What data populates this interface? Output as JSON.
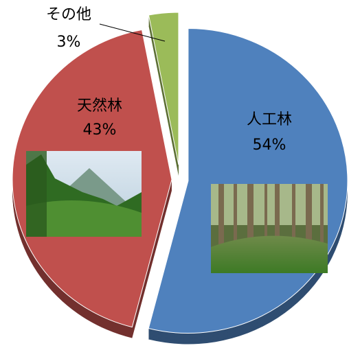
{
  "chart_data": {
    "type": "pie",
    "categories": [
      "人工林",
      "天然林",
      "その他"
    ],
    "values": [
      54,
      43,
      3
    ],
    "value_labels": [
      "54%",
      "43%",
      "3%"
    ],
    "colors": [
      "#4f81bd",
      "#c0504d",
      "#9bbb59"
    ]
  }
}
